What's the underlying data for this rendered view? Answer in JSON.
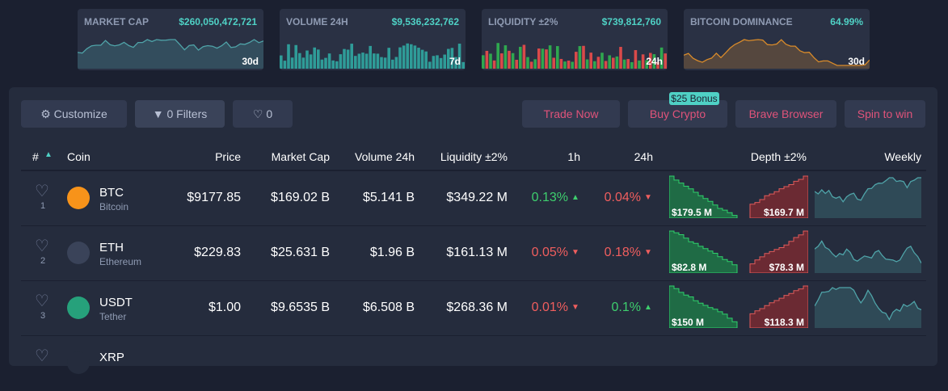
{
  "stats": [
    {
      "label": "MARKET CAP",
      "value": "$260,050,472,721",
      "period": "30d"
    },
    {
      "label": "VOLUME 24H",
      "value": "$9,536,232,762",
      "period": "7d"
    },
    {
      "label": "LIQUIDITY ±2%",
      "value": "$739,812,760",
      "period": "24h"
    },
    {
      "label": "BITCOIN DOMINANCE",
      "value": "64.99%",
      "period": "30d"
    }
  ],
  "toolbar": {
    "customize": "Customize",
    "filters": "0 Filters",
    "favorites": "0",
    "trade": "Trade Now",
    "buy": "Buy Crypto",
    "bonus": "$25 Bonus",
    "brave": "Brave Browser",
    "spin": "Spin to win"
  },
  "table": {
    "columns": [
      "#",
      "Coin",
      "Price",
      "Market Cap",
      "Volume 24h",
      "Liquidity ±2%",
      "1h",
      "24h",
      "Depth ±2%",
      "Weekly"
    ],
    "rows": [
      {
        "rank": "1",
        "symbol": "BTC",
        "name": "Bitcoin",
        "price": "$9177.85",
        "market_cap": "$169.02 B",
        "volume": "$5.141 B",
        "liquidity": "$349.22 M",
        "h1": "0.13%",
        "h1_dir": "up",
        "h24": "0.04%",
        "h24_dir": "down",
        "bid": "$179.5 M",
        "ask": "$169.7 M"
      },
      {
        "rank": "2",
        "symbol": "ETH",
        "name": "Ethereum",
        "price": "$229.83",
        "market_cap": "$25.631 B",
        "volume": "$1.96 B",
        "liquidity": "$161.13 M",
        "h1": "0.05%",
        "h1_dir": "down",
        "h24": "0.18%",
        "h24_dir": "down",
        "bid": "$82.8 M",
        "ask": "$78.3 M"
      },
      {
        "rank": "3",
        "symbol": "USDT",
        "name": "Tether",
        "price": "$1.00",
        "market_cap": "$9.6535 B",
        "volume": "$6.508 B",
        "liquidity": "$268.36 M",
        "h1": "0.01%",
        "h1_dir": "down",
        "h24": "0.1%",
        "h24_dir": "up",
        "bid": "$150 M",
        "ask": "$118.3 M"
      },
      {
        "symbol": "XRP"
      }
    ]
  }
}
